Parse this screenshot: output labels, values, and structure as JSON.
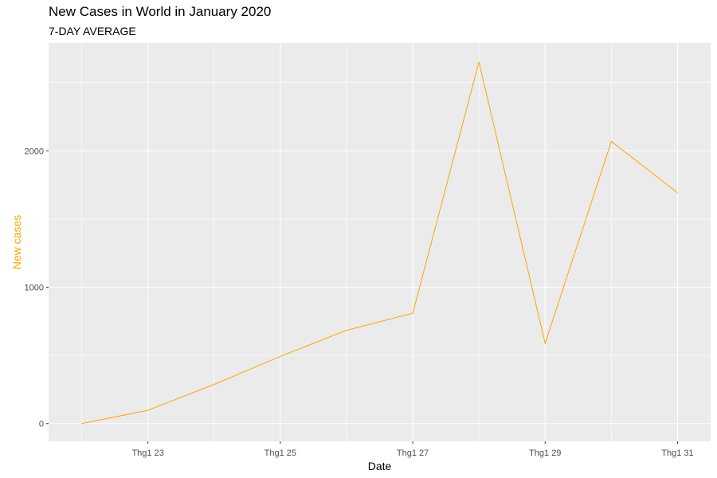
{
  "title": "New Cases in World in January 2020",
  "subtitle": "7-DAY AVERAGE",
  "colors": {
    "panel": "#ebebeb",
    "grid": "#ffffff",
    "line": "#ffa500",
    "ylabel": "#ffa500",
    "tick_text": "#4d4d4d"
  },
  "chart_data": {
    "type": "line",
    "title": "New Cases in World in January 2020",
    "subtitle": "7-DAY AVERAGE",
    "xlabel": "Date",
    "ylabel": "New cases",
    "x": [
      "2020-01-22",
      "2020-01-23",
      "2020-01-24",
      "2020-01-25",
      "2020-01-26",
      "2020-01-27",
      "2020-01-28",
      "2020-01-29",
      "2020-01-30",
      "2020-01-31"
    ],
    "series": [
      {
        "values": [
          0,
          98,
          287,
          493,
          684,
          809,
          2651,
          588,
          2068,
          1693
        ]
      }
    ],
    "xlim": [
      "2020-01-21 12:00",
      "2020-01-31 12:00"
    ],
    "ylim": [
      -130,
      2790
    ],
    "x_ticks": [
      {
        "date": "2020-01-23",
        "label": "Thg1 23"
      },
      {
        "date": "2020-01-25",
        "label": "Thg1 25"
      },
      {
        "date": "2020-01-27",
        "label": "Thg1 27"
      },
      {
        "date": "2020-01-29",
        "label": "Thg1 29"
      },
      {
        "date": "2020-01-31",
        "label": "Thg1 31"
      }
    ],
    "y_ticks": [
      {
        "value": 0,
        "label": "0"
      },
      {
        "value": 1000,
        "label": "1000"
      },
      {
        "value": 2000,
        "label": "2000"
      }
    ],
    "y_minor_ticks": [
      500,
      1500,
      2500
    ],
    "x_minor_ticks": [
      "2020-01-22",
      "2020-01-24",
      "2020-01-26",
      "2020-01-28",
      "2020-01-30"
    ],
    "grid": true,
    "legend": "none"
  }
}
